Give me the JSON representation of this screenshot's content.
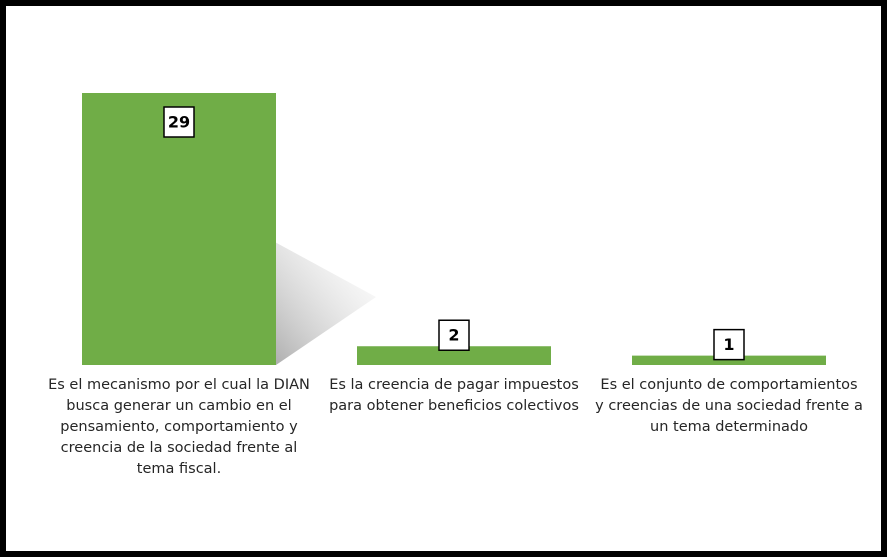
{
  "chart_data": {
    "type": "bar",
    "categories": [
      "Es el mecanismo por el cual la DIAN busca generar un cambio en el pensamiento, comportamiento y creencia de la sociedad frente al tema fiscal.",
      "Es la creencia de pagar impuestos para obtener beneficios colectivos",
      "Es el conjunto de comportamientos y creencias de una sociedad frente a un tema determinado"
    ],
    "values": [
      29,
      2,
      1
    ],
    "color": "#70ad47"
  }
}
